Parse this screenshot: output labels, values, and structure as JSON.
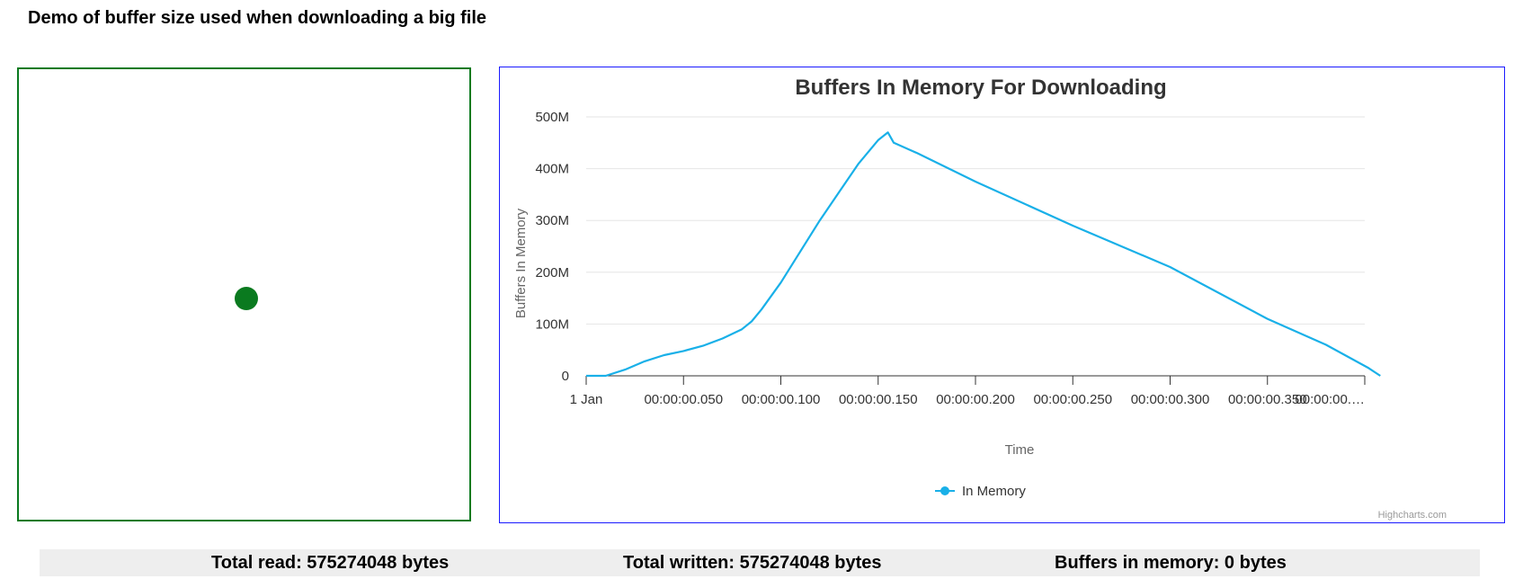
{
  "page": {
    "title": "Demo of buffer size used when downloading a big file"
  },
  "colors": {
    "series": "#19b0e8",
    "animation": "#0a7a1f",
    "chart_border": "#1a1aff"
  },
  "stats": {
    "total_read": "Total read: 575274048 bytes",
    "total_written": "Total written: 575274048 bytes",
    "buffers_in_memory": "Buffers in memory: 0 bytes"
  },
  "chart_data": {
    "type": "line",
    "title": "Buffers In Memory For Downloading",
    "xlabel": "Time",
    "ylabel": "Buffers In Memory",
    "credits": "Highcharts.com",
    "legend": {
      "placement": "bottom-center"
    },
    "grid": true,
    "x_unit": "seconds",
    "xlim": [
      0,
      0.4
    ],
    "ylim": [
      0,
      500
    ],
    "x_ticks": [
      0,
      0.05,
      0.1,
      0.15,
      0.2,
      0.25,
      0.3,
      0.35,
      0.4
    ],
    "x_tick_labels": [
      "1 Jan",
      "00:00:00.050",
      "00:00:00.100",
      "00:00:00.150",
      "00:00:00.200",
      "00:00:00.250",
      "00:00:00.300",
      "00:00:00.350",
      "00:00:00.…"
    ],
    "y_ticks": [
      0,
      100,
      200,
      300,
      400,
      500
    ],
    "y_tick_labels": [
      "0",
      "100M",
      "200M",
      "300M",
      "400M",
      "500M"
    ],
    "series": [
      {
        "name": "In Memory",
        "x": [
          0,
          0.01,
          0.02,
          0.03,
          0.04,
          0.05,
          0.06,
          0.07,
          0.08,
          0.085,
          0.09,
          0.1,
          0.11,
          0.12,
          0.13,
          0.14,
          0.15,
          0.155,
          0.158,
          0.17,
          0.2,
          0.25,
          0.3,
          0.35,
          0.38,
          0.402,
          0.408
        ],
        "y": [
          0,
          0,
          12,
          28,
          40,
          48,
          58,
          72,
          90,
          105,
          128,
          180,
          240,
          300,
          355,
          410,
          455,
          470,
          450,
          430,
          375,
          290,
          210,
          110,
          60,
          15,
          0
        ]
      }
    ]
  }
}
